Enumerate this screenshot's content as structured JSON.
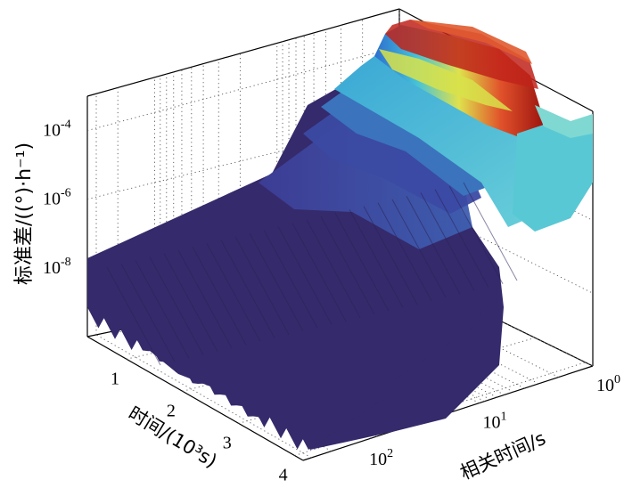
{
  "chart_data": {
    "type": "surface-3d",
    "title": "",
    "zlabel": "标准差/((°)·h⁻¹)",
    "xlabel": "时间/(10³s)",
    "ylabel": "相关时间/s",
    "z_scale": "log",
    "z_ticks": [
      {
        "value": 0.0001,
        "label": "10",
        "exp": "-4"
      },
      {
        "value": 1e-06,
        "label": "10",
        "exp": "-6"
      },
      {
        "value": 1e-08,
        "label": "10",
        "exp": "-8"
      }
    ],
    "time_ticks": [
      {
        "value": 1,
        "label": "1"
      },
      {
        "value": 2,
        "label": "2"
      },
      {
        "value": 3,
        "label": "3"
      },
      {
        "value": 4,
        "label": "4"
      }
    ],
    "corr_scale": "log",
    "corr_ticks": [
      {
        "value": 1,
        "label": "10",
        "exp": "0"
      },
      {
        "value": 10,
        "label": "10",
        "exp": "1"
      },
      {
        "value": 100,
        "label": "10",
        "exp": "2"
      }
    ],
    "grid": true,
    "colormap": "jet",
    "colors": {
      "low": "#352a6b",
      "mid_low": "#3f66b8",
      "mid": "#47c0d2",
      "mid_high": "#d8e24a",
      "high": "#b21a12"
    }
  }
}
